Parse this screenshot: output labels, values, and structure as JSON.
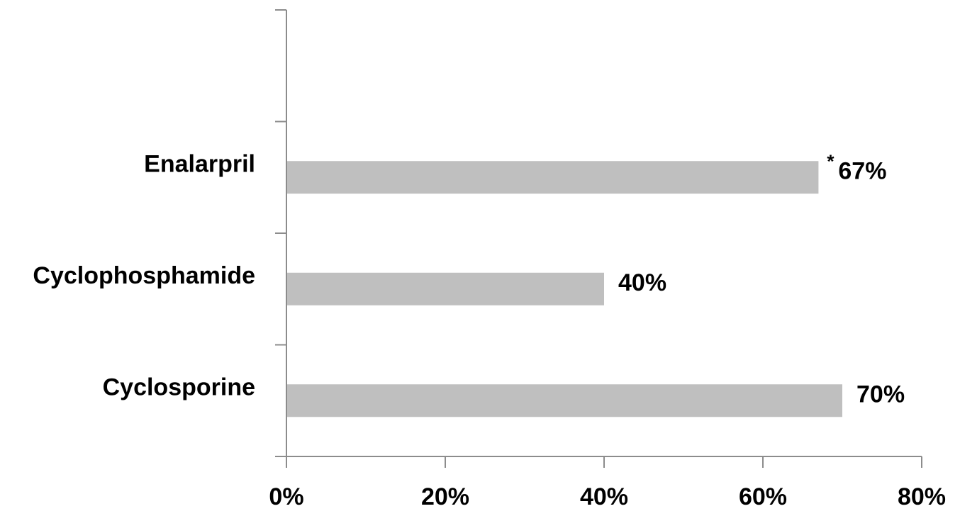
{
  "chart_data": {
    "type": "bar",
    "orientation": "horizontal",
    "title": "",
    "xlabel": "",
    "ylabel": "",
    "categories": [
      "Enalarpril",
      "Cyclophosphamide",
      "Cyclosporine"
    ],
    "empty_slots_above": 1,
    "values": [
      67,
      40,
      70
    ],
    "data_labels": [
      "67%",
      "40%",
      "70%"
    ],
    "markers": [
      "*",
      "",
      ""
    ],
    "xlim": [
      0,
      80
    ],
    "x_ticks": [
      0,
      20,
      40,
      60,
      80
    ],
    "x_tick_labels": [
      "0%",
      "20%",
      "40%",
      "60%",
      "80%"
    ],
    "grid": false,
    "legend": "none",
    "bar_color": "#bfbfbf",
    "axis_color": "#8c8c8c"
  }
}
